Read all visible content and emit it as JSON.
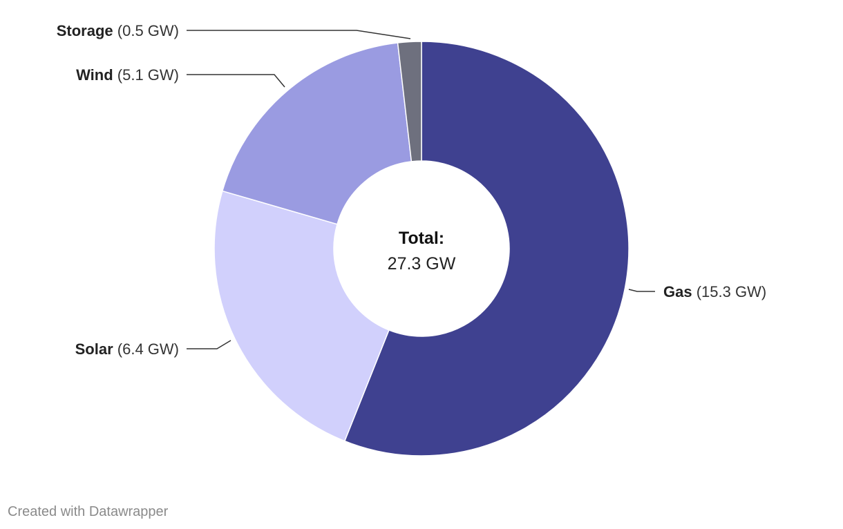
{
  "chart_data": {
    "type": "pie",
    "donut": true,
    "slices": [
      {
        "label": "Gas",
        "value": 15.3,
        "value_label": "(15.3 GW)",
        "color": "#3f4190"
      },
      {
        "label": "Solar",
        "value": 6.4,
        "value_label": "(6.4 GW)",
        "color": "#d1d0fc"
      },
      {
        "label": "Wind",
        "value": 5.1,
        "value_label": "(5.1 GW)",
        "color": "#9a9be1"
      },
      {
        "label": "Storage",
        "value": 0.5,
        "value_label": "(0.5 GW)",
        "color": "#6e707e"
      }
    ],
    "center": {
      "title": "Total:",
      "value": "27.3 GW"
    }
  },
  "footer": {
    "credit": "Created with Datawrapper"
  }
}
